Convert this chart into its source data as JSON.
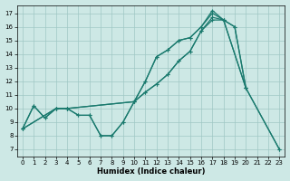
{
  "xlabel": "Humidex (Indice chaleur)",
  "bg_color": "#cde8e5",
  "grid_color": "#a0c8c5",
  "line_color": "#1a7a6e",
  "xlim": [
    -0.5,
    23.5
  ],
  "ylim": [
    6.5,
    17.6
  ],
  "xticks": [
    0,
    1,
    2,
    3,
    4,
    5,
    6,
    7,
    8,
    9,
    10,
    11,
    12,
    13,
    14,
    15,
    16,
    17,
    18,
    19,
    20,
    21,
    22,
    23
  ],
  "yticks": [
    7,
    8,
    9,
    10,
    11,
    12,
    13,
    14,
    15,
    16,
    17
  ],
  "line1_x": [
    0,
    1,
    2,
    3,
    4,
    5,
    6,
    7,
    8,
    9,
    10,
    11,
    12,
    13,
    14,
    15,
    16,
    17,
    18,
    20
  ],
  "line1_y": [
    8.5,
    10.2,
    9.3,
    10.0,
    10.0,
    9.5,
    9.5,
    8.0,
    8.0,
    9.0,
    10.5,
    12.0,
    13.8,
    14.3,
    15.0,
    15.2,
    16.0,
    17.2,
    16.5,
    11.5
  ],
  "line2_x": [
    0,
    1,
    2,
    3,
    4,
    5,
    6,
    7,
    8,
    9,
    10,
    11,
    12,
    13,
    14,
    15,
    16,
    17,
    18,
    20,
    23
  ],
  "line2_y": [
    8.5,
    10.2,
    9.3,
    10.0,
    10.0,
    9.5,
    9.5,
    8.0,
    8.0,
    9.0,
    10.5,
    12.0,
    13.8,
    14.3,
    15.0,
    15.2,
    16.0,
    17.0,
    16.5,
    11.5,
    7.0
  ],
  "line3_x": [
    0,
    3,
    4,
    10,
    11,
    12,
    13,
    14,
    15,
    16,
    17,
    18,
    19,
    20
  ],
  "line3_y": [
    8.5,
    10.0,
    10.0,
    10.5,
    11.2,
    11.8,
    12.5,
    13.5,
    14.2,
    15.7,
    16.7,
    16.5,
    16.0,
    11.5
  ],
  "line4_x": [
    0,
    3,
    4,
    10,
    11,
    12,
    13,
    14,
    15,
    16,
    17,
    18,
    19,
    20,
    23
  ],
  "line4_y": [
    8.5,
    10.0,
    10.0,
    10.5,
    11.2,
    11.8,
    12.5,
    13.5,
    14.2,
    15.7,
    16.5,
    16.5,
    16.0,
    11.5,
    7.0
  ]
}
